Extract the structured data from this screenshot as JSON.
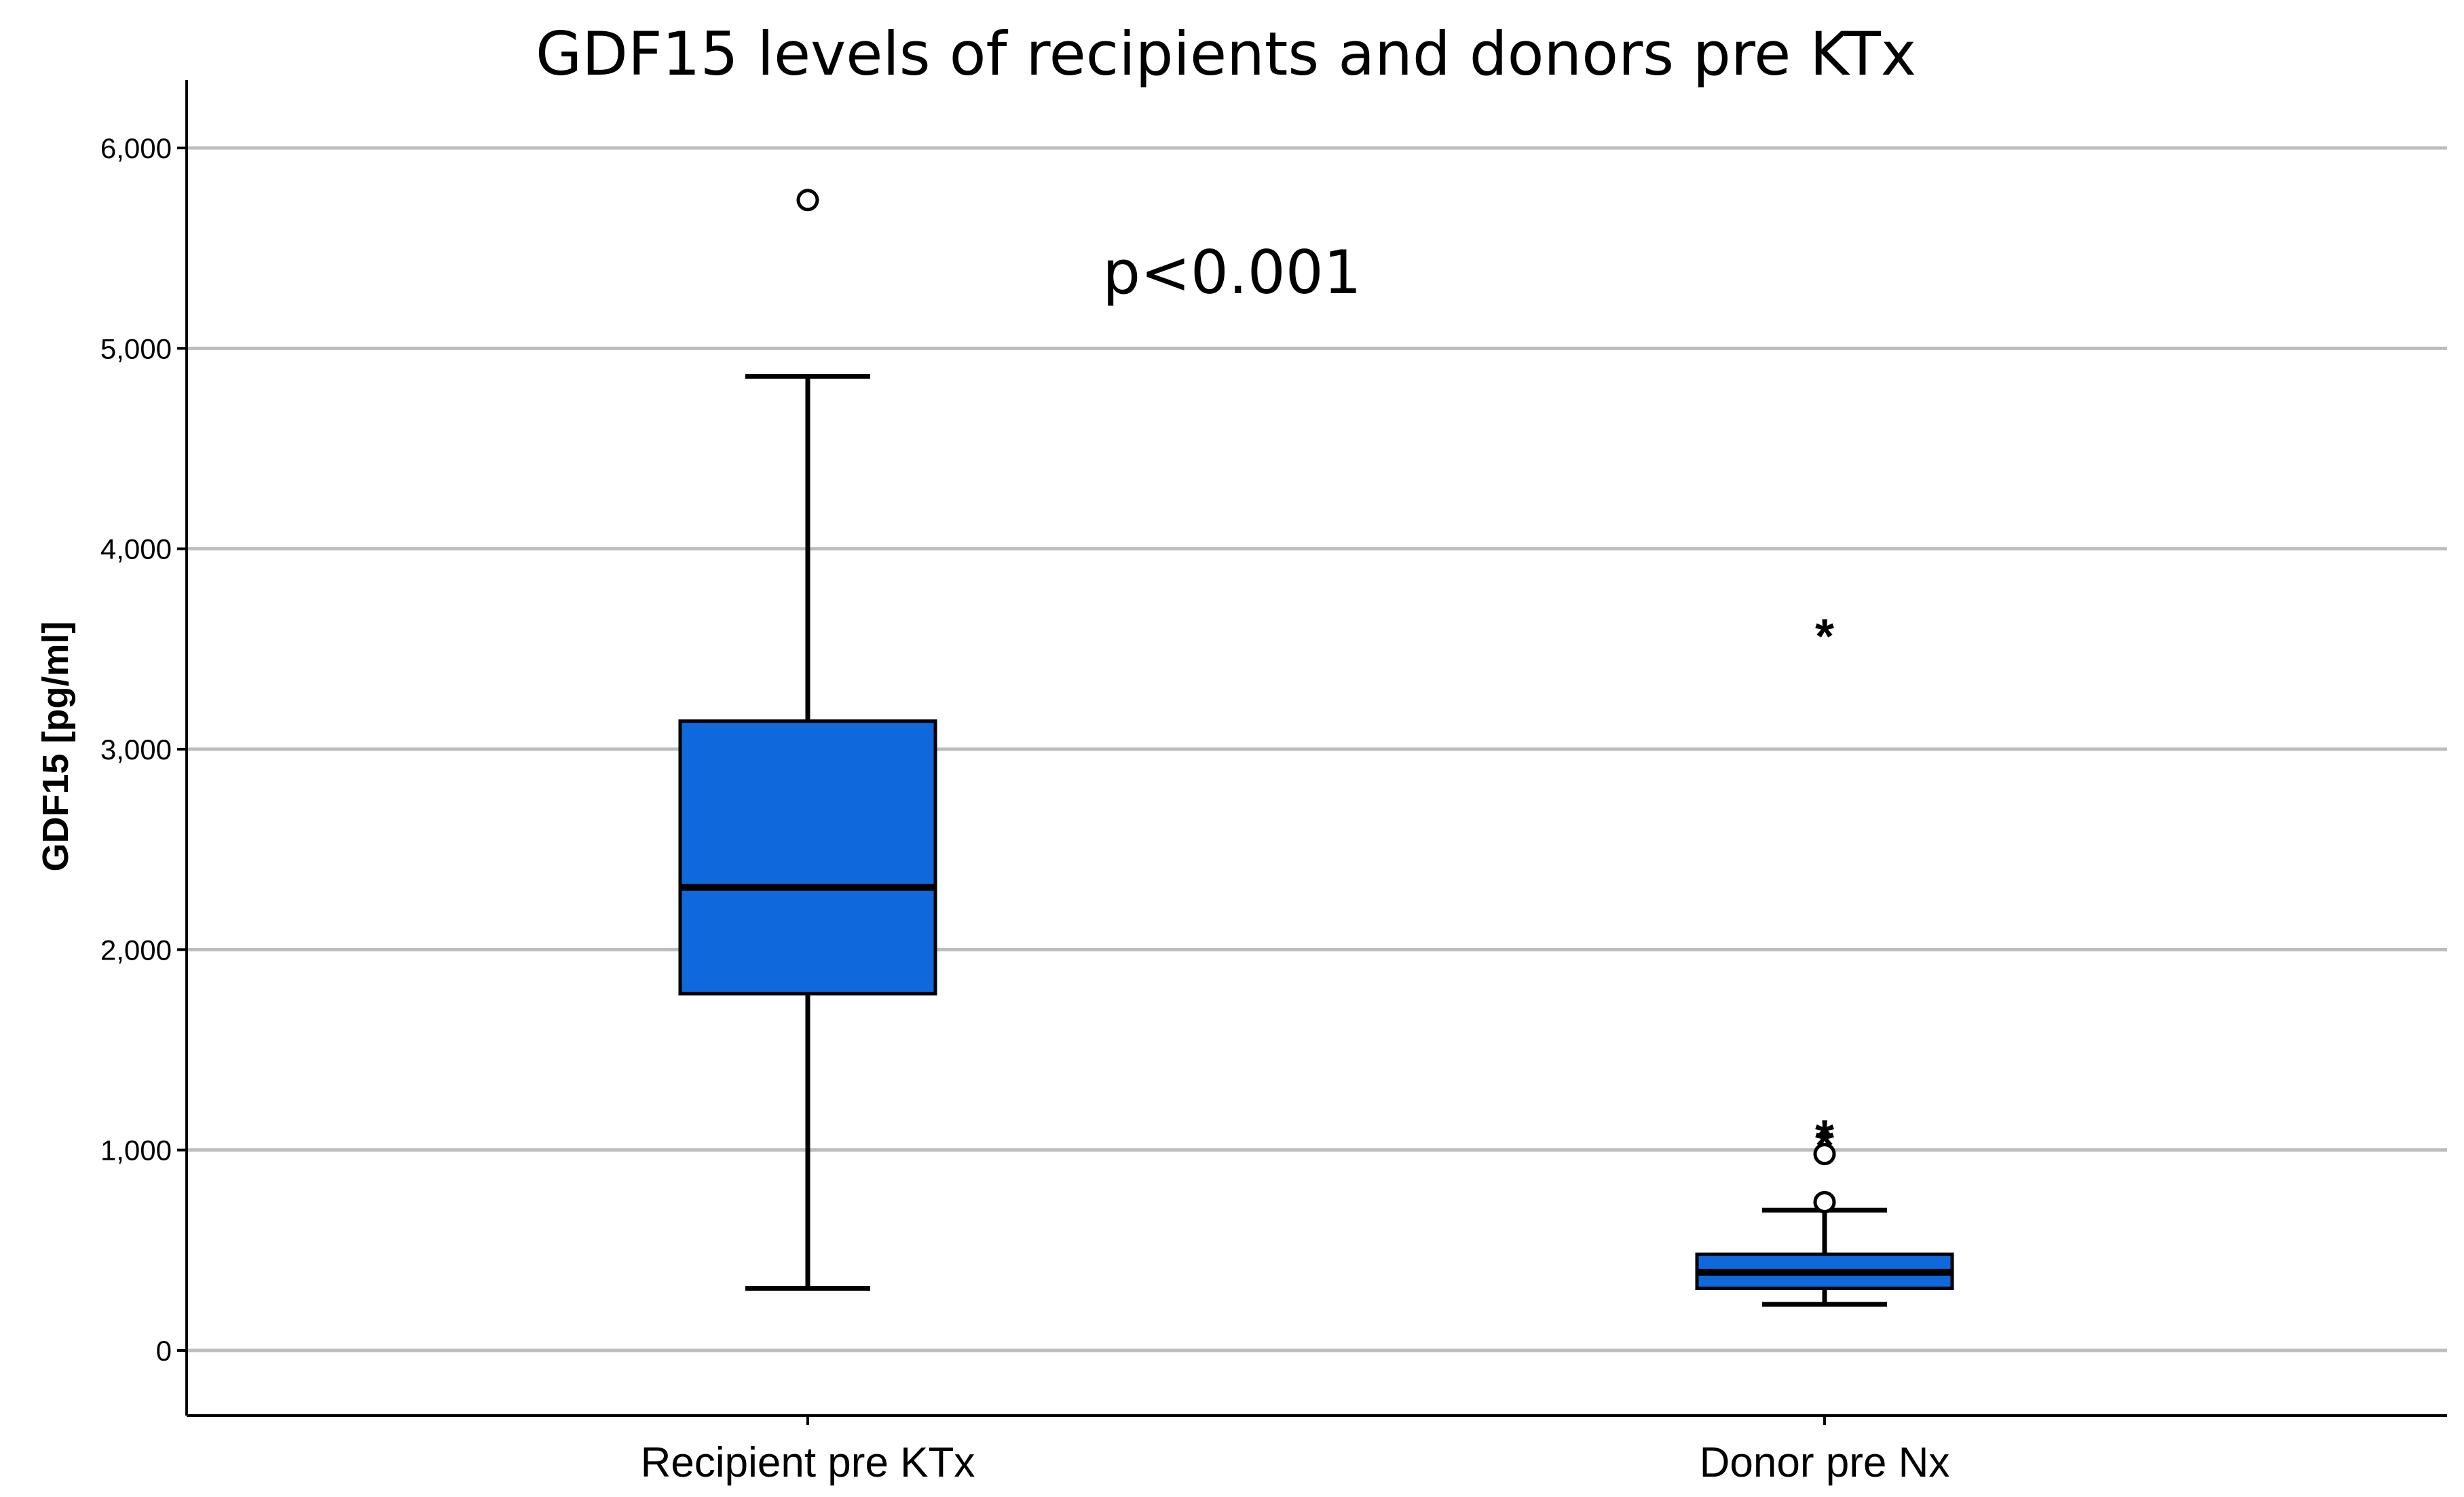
{
  "chart_data": {
    "type": "boxplot",
    "title": "GDF15 levels of recipients and donors pre KTx",
    "ylabel": "GDF15 [pg/ml]",
    "xlabel": "",
    "ylim": [
      -300,
      6330
    ],
    "yticks": [
      0,
      1000,
      2000,
      3000,
      4000,
      5000,
      6000
    ],
    "ytick_labels": [
      "0",
      "1,000",
      "2,000",
      "3,000",
      "4,000",
      "5,000",
      "6,000"
    ],
    "grid": true,
    "annotation": "p<0.001",
    "box_color": "#0f68dc",
    "categories": [
      "Recipient pre KTx",
      "Donor pre Nx"
    ],
    "boxes": [
      {
        "category": "Recipient pre KTx",
        "whisker_low": 310,
        "q1": 1780,
        "median": 2310,
        "q3": 3140,
        "whisker_high": 4860,
        "outliers": [
          5740
        ],
        "extremes": []
      },
      {
        "category": "Donor pre Nx",
        "whisker_low": 230,
        "q1": 310,
        "median": 390,
        "q3": 480,
        "whisker_high": 700,
        "outliers": [
          740,
          980
        ],
        "extremes": [
          1040,
          1080,
          3580
        ]
      }
    ]
  }
}
